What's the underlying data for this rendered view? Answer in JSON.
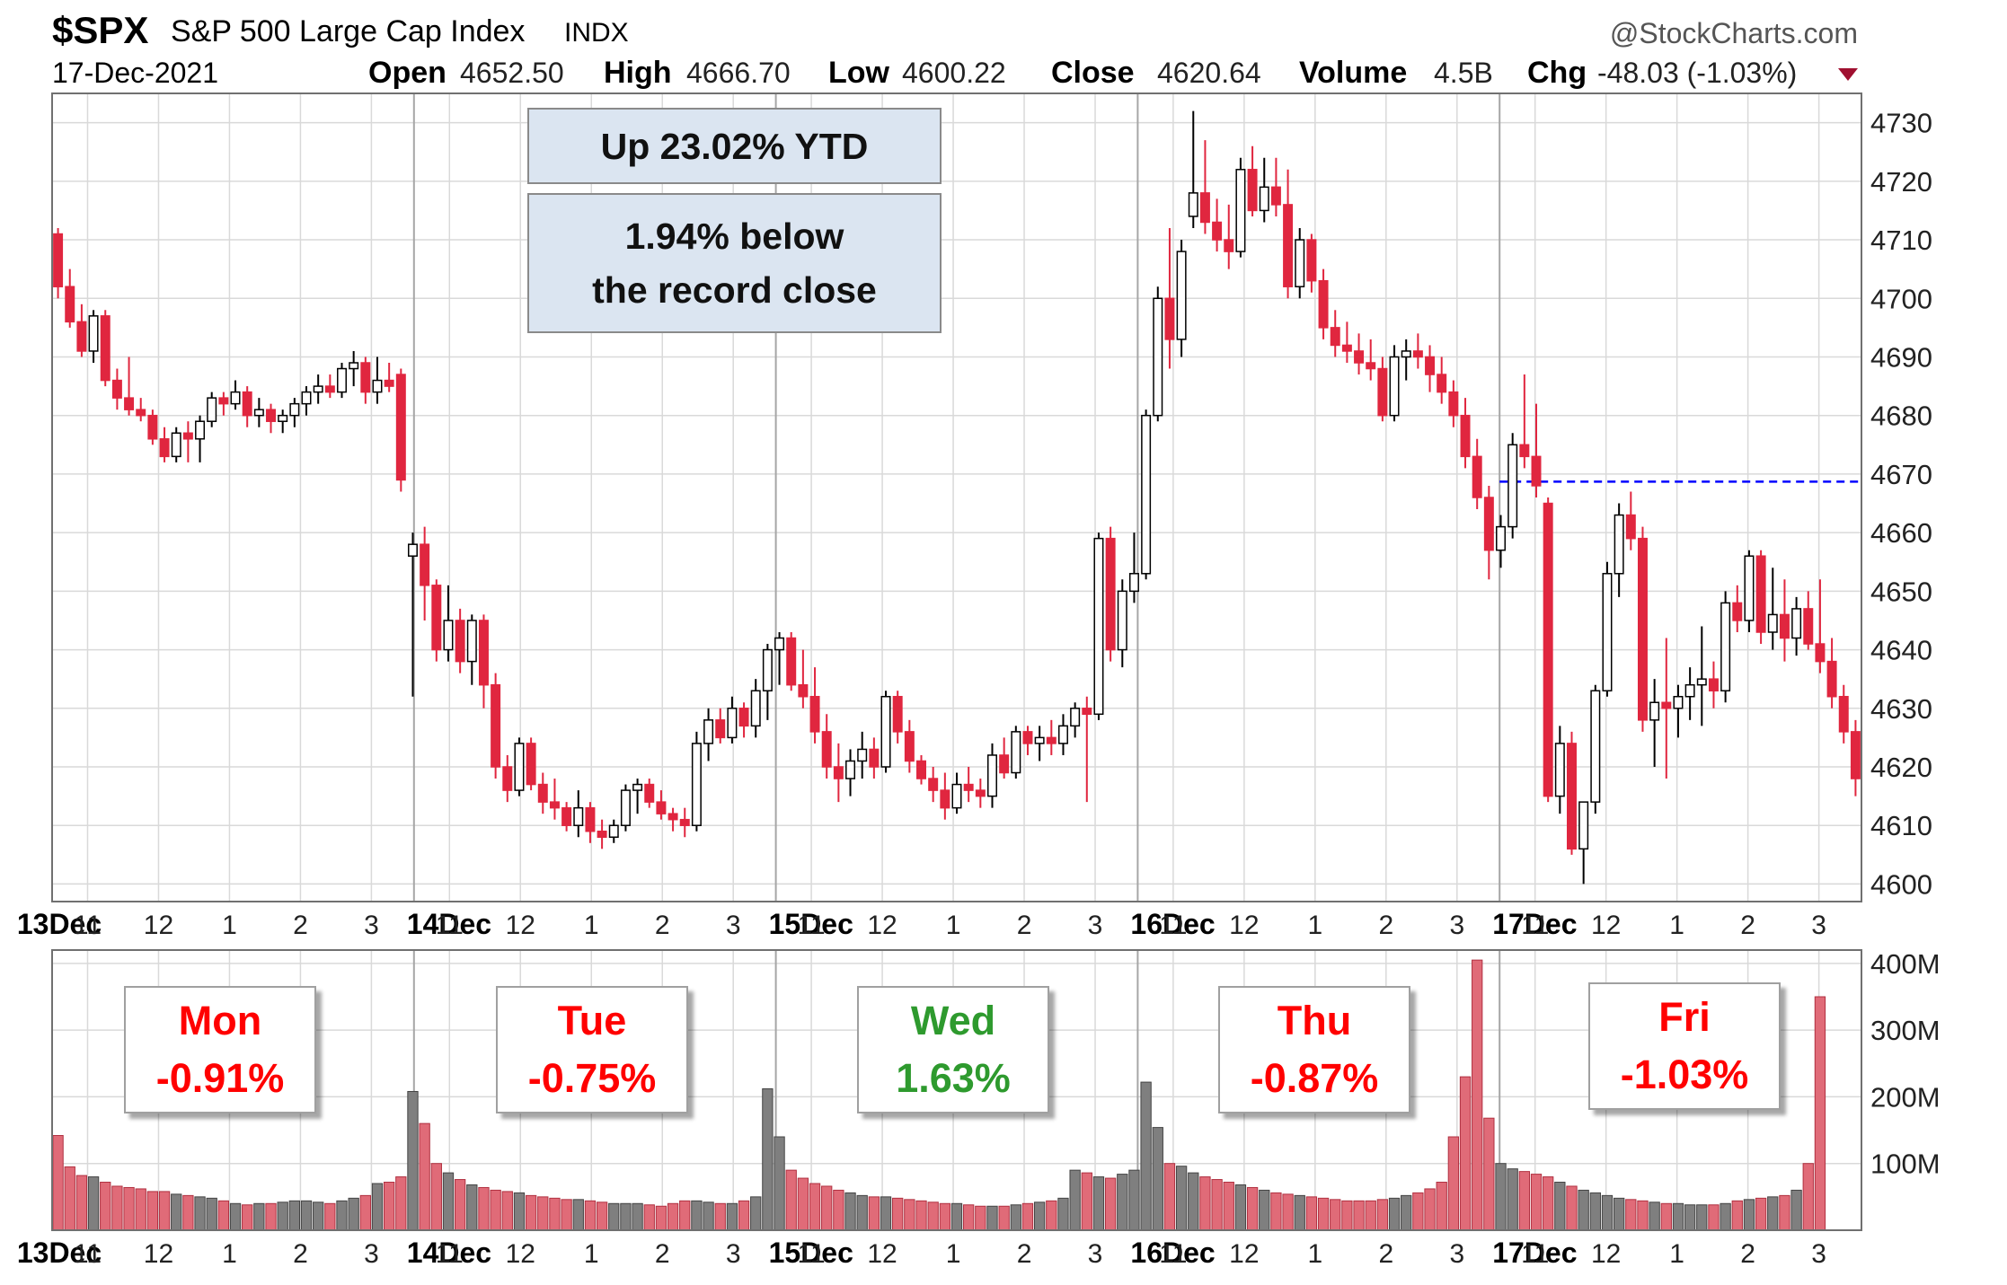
{
  "header": {
    "symbol": "$SPX",
    "name": "S&P 500 Large Cap Index",
    "exchange": "INDX",
    "date": "17-Dec-2021",
    "copyright": "@StockCharts.com",
    "stats": [
      {
        "label": "Open",
        "value": "4652.50"
      },
      {
        "label": "High",
        "value": "4666.70"
      },
      {
        "label": "Low",
        "value": "4600.22"
      },
      {
        "label": "Close",
        "value": "4620.64"
      },
      {
        "label": "Volume",
        "value": "4.5B"
      },
      {
        "label": "Chg",
        "value": "-48.03 (-1.03%)"
      }
    ],
    "change_direction": "down"
  },
  "callouts": {
    "ytd": "Up 23.02% YTD",
    "record_line1": "1.94% below",
    "record_line2": "the record close"
  },
  "day_boxes": [
    {
      "day": "Mon",
      "change": "-0.91%",
      "color": "#ff0000"
    },
    {
      "day": "Tue",
      "change": "-0.75%",
      "color": "#ff0000"
    },
    {
      "day": "Wed",
      "change": "1.63%",
      "color": "#2e9a2e"
    },
    {
      "day": "Thu",
      "change": "-0.87%",
      "color": "#ff0000"
    },
    {
      "day": "Fri",
      "change": "-1.03%",
      "color": "#ff0000"
    }
  ],
  "colors": {
    "up": "#ffffff",
    "down": "#e0263f",
    "reference_line": "#0000ff",
    "volume_up": "#7f7f7f",
    "volume_down": "#e06b78"
  },
  "chart_data": {
    "type": "candlestick",
    "interval_minutes": 10,
    "ylim": [
      4597,
      4735
    ],
    "yticks": [
      4600,
      4610,
      4620,
      4630,
      4640,
      4650,
      4660,
      4670,
      4680,
      4690,
      4700,
      4710,
      4720,
      4730
    ],
    "reference_line": {
      "value": 4668.7,
      "start_day": "17Dec"
    },
    "days": [
      "13Dec",
      "14Dec",
      "15Dec",
      "16Dec",
      "17Dec"
    ],
    "x_tick_labels": [
      "13Dec",
      "11",
      "12",
      "1",
      "2",
      "3",
      "14Dec",
      "11",
      "12",
      "1",
      "2",
      "3",
      "15Dec",
      "11",
      "12",
      "1",
      "2",
      "3",
      "16Dec",
      "11",
      "12",
      "1",
      "2",
      "3",
      "17Dec",
      "11",
      "12",
      "1",
      "2",
      "3"
    ],
    "candles": [
      [
        4711,
        4712,
        4700,
        4702
      ],
      [
        4702,
        4705,
        4695,
        4696
      ],
      [
        4696,
        4699,
        4690,
        4691
      ],
      [
        4691,
        4698,
        4689,
        4697
      ],
      [
        4697,
        4698,
        4685,
        4686
      ],
      [
        4686,
        4688,
        4681,
        4683
      ],
      [
        4683,
        4690,
        4680,
        4681
      ],
      [
        4681,
        4683,
        4679,
        4680
      ],
      [
        4680,
        4681,
        4675,
        4676
      ],
      [
        4676,
        4678,
        4672,
        4673
      ],
      [
        4673,
        4678,
        4672,
        4677
      ],
      [
        4677,
        4679,
        4672,
        4676
      ],
      [
        4676,
        4680,
        4672,
        4679
      ],
      [
        4679,
        4684,
        4678,
        4683
      ],
      [
        4683,
        4684,
        4680,
        4682
      ],
      [
        4682,
        4686,
        4681,
        4684
      ],
      [
        4684,
        4685,
        4678,
        4680
      ],
      [
        4680,
        4683,
        4678,
        4681
      ],
      [
        4681,
        4682,
        4677,
        4679
      ],
      [
        4679,
        4681,
        4677,
        4680
      ],
      [
        4680,
        4683,
        4678,
        4682
      ],
      [
        4682,
        4685,
        4680,
        4684
      ],
      [
        4684,
        4687,
        4682,
        4685
      ],
      [
        4685,
        4687,
        4683,
        4684
      ],
      [
        4684,
        4689,
        4683,
        4688
      ],
      [
        4688,
        4691,
        4685,
        4689
      ],
      [
        4689,
        4690,
        4682,
        4684
      ],
      [
        4684,
        4690,
        4682,
        4686
      ],
      [
        4686,
        4689,
        4684,
        4685
      ],
      [
        4687,
        4688,
        4667,
        4669
      ],
      [
        4656,
        4660,
        4632,
        4658
      ],
      [
        4658,
        4661,
        4645,
        4651
      ],
      [
        4651,
        4652,
        4638,
        4640
      ],
      [
        4640,
        4651,
        4638,
        4645
      ],
      [
        4645,
        4647,
        4636,
        4638
      ],
      [
        4638,
        4646,
        4634,
        4645
      ],
      [
        4645,
        4646,
        4630,
        4634
      ],
      [
        4634,
        4636,
        4618,
        4620
      ],
      [
        4620,
        4622,
        4614,
        4616
      ],
      [
        4616,
        4625,
        4615,
        4624
      ],
      [
        4624,
        4625,
        4616,
        4617
      ],
      [
        4617,
        4619,
        4612,
        4614
      ],
      [
        4614,
        4618,
        4611,
        4613
      ],
      [
        4613,
        4614,
        4609,
        4610
      ],
      [
        4610,
        4616,
        4608,
        4613
      ],
      [
        4613,
        4614,
        4607,
        4609
      ],
      [
        4609,
        4611,
        4606,
        4608
      ],
      [
        4608,
        4611,
        4607,
        4610
      ],
      [
        4610,
        4617,
        4609,
        4616
      ],
      [
        4616,
        4618,
        4612,
        4617
      ],
      [
        4617,
        4618,
        4613,
        4614
      ],
      [
        4614,
        4616,
        4611,
        4612
      ],
      [
        4612,
        4613,
        4609,
        4611
      ],
      [
        4611,
        4613,
        4608,
        4610
      ],
      [
        4610,
        4626,
        4609,
        4624
      ],
      [
        4624,
        4630,
        4621,
        4628
      ],
      [
        4628,
        4630,
        4624,
        4625
      ],
      [
        4625,
        4632,
        4624,
        4630
      ],
      [
        4630,
        4631,
        4625,
        4627
      ],
      [
        4627,
        4635,
        4625,
        4633
      ],
      [
        4633,
        4641,
        4628,
        4640
      ],
      [
        4640,
        4643,
        4634,
        4642
      ],
      [
        4642,
        4643,
        4633,
        4634
      ],
      [
        4634,
        4640,
        4630,
        4632
      ],
      [
        4632,
        4637,
        4624,
        4626
      ],
      [
        4626,
        4629,
        4618,
        4620
      ],
      [
        4620,
        4624,
        4614,
        4618
      ],
      [
        4618,
        4623,
        4615,
        4621
      ],
      [
        4621,
        4626,
        4618,
        4623
      ],
      [
        4623,
        4625,
        4618,
        4620
      ],
      [
        4620,
        4633,
        4619,
        4632
      ],
      [
        4632,
        4633,
        4624,
        4626
      ],
      [
        4626,
        4628,
        4619,
        4621
      ],
      [
        4621,
        4622,
        4617,
        4618
      ],
      [
        4618,
        4620,
        4614,
        4616
      ],
      [
        4616,
        4619,
        4611,
        4613
      ],
      [
        4613,
        4619,
        4612,
        4617
      ],
      [
        4617,
        4620,
        4614,
        4616
      ],
      [
        4616,
        4618,
        4613,
        4615
      ],
      [
        4615,
        4624,
        4613,
        4622
      ],
      [
        4622,
        4625,
        4618,
        4619
      ],
      [
        4619,
        4627,
        4618,
        4626
      ],
      [
        4626,
        4627,
        4622,
        4624
      ],
      [
        4624,
        4627,
        4621,
        4625
      ],
      [
        4625,
        4628,
        4622,
        4624
      ],
      [
        4624,
        4629,
        4622,
        4627
      ],
      [
        4627,
        4631,
        4625,
        4630
      ],
      [
        4630,
        4632,
        4614,
        4629
      ],
      [
        4629,
        4660,
        4628,
        4659
      ],
      [
        4659,
        4661,
        4638,
        4640
      ],
      [
        4640,
        4652,
        4637,
        4650
      ],
      [
        4650,
        4660,
        4648,
        4653
      ],
      [
        4653,
        4681,
        4652,
        4680
      ],
      [
        4680,
        4702,
        4679,
        4700
      ],
      [
        4700,
        4712,
        4688,
        4693
      ],
      [
        4693,
        4710,
        4690,
        4708
      ],
      [
        4714,
        4732,
        4712,
        4718
      ],
      [
        4718,
        4727,
        4711,
        4713
      ],
      [
        4713,
        4717,
        4708,
        4710
      ],
      [
        4710,
        4716,
        4705,
        4708
      ],
      [
        4708,
        4724,
        4707,
        4722
      ],
      [
        4722,
        4726,
        4714,
        4715
      ],
      [
        4715,
        4724,
        4713,
        4719
      ],
      [
        4719,
        4724,
        4714,
        4716
      ],
      [
        4716,
        4722,
        4700,
        4702
      ],
      [
        4702,
        4712,
        4700,
        4710
      ],
      [
        4710,
        4711,
        4701,
        4703
      ],
      [
        4703,
        4705,
        4693,
        4695
      ],
      [
        4695,
        4698,
        4690,
        4692
      ],
      [
        4692,
        4696,
        4689,
        4691
      ],
      [
        4691,
        4694,
        4687,
        4689
      ],
      [
        4689,
        4693,
        4686,
        4688
      ],
      [
        4688,
        4690,
        4679,
        4680
      ],
      [
        4680,
        4692,
        4679,
        4690
      ],
      [
        4690,
        4693,
        4686,
        4691
      ],
      [
        4691,
        4694,
        4688,
        4690
      ],
      [
        4690,
        4692,
        4684,
        4687
      ],
      [
        4687,
        4690,
        4682,
        4684
      ],
      [
        4684,
        4686,
        4678,
        4680
      ],
      [
        4680,
        4683,
        4671,
        4673
      ],
      [
        4673,
        4676,
        4664,
        4666
      ],
      [
        4666,
        4668,
        4652,
        4657
      ],
      [
        4657,
        4663,
        4654,
        4661
      ],
      [
        4661,
        4677,
        4659,
        4675
      ],
      [
        4675,
        4687,
        4671,
        4673
      ],
      [
        4673,
        4682,
        4666,
        4668
      ],
      [
        4665,
        4666,
        4614,
        4615
      ],
      [
        4615,
        4627,
        4612,
        4624
      ],
      [
        4624,
        4626,
        4605,
        4606
      ],
      [
        4606,
        4614,
        4600,
        4614
      ],
      [
        4614,
        4634,
        4612,
        4633
      ],
      [
        4633,
        4655,
        4632,
        4653
      ],
      [
        4653,
        4665,
        4649,
        4663
      ],
      [
        4663,
        4667,
        4657,
        4659
      ],
      [
        4659,
        4661,
        4626,
        4628
      ],
      [
        4628,
        4635,
        4620,
        4631
      ],
      [
        4631,
        4642,
        4618,
        4630
      ],
      [
        4630,
        4634,
        4625,
        4632
      ],
      [
        4632,
        4637,
        4628,
        4634
      ],
      [
        4634,
        4644,
        4627,
        4635
      ],
      [
        4635,
        4638,
        4630,
        4633
      ],
      [
        4633,
        4650,
        4631,
        4648
      ],
      [
        4648,
        4651,
        4643,
        4645
      ],
      [
        4645,
        4657,
        4643,
        4656
      ],
      [
        4656,
        4657,
        4641,
        4643
      ],
      [
        4643,
        4654,
        4640,
        4646
      ],
      [
        4646,
        4652,
        4638,
        4642
      ],
      [
        4642,
        4649,
        4639,
        4647
      ],
      [
        4647,
        4650,
        4640,
        4641
      ],
      [
        4641,
        4652,
        4636,
        4638
      ],
      [
        4638,
        4642,
        4630,
        4632
      ],
      [
        4632,
        4634,
        4624,
        4626
      ],
      [
        4626,
        4628,
        4615,
        4618
      ]
    ],
    "volume": {
      "ylim": [
        0,
        420
      ],
      "yticks": [
        100,
        200,
        300,
        400
      ],
      "tick_labels": [
        "100M",
        "200M",
        "300M",
        "400M"
      ],
      "values": [
        142,
        95,
        82,
        80,
        72,
        66,
        64,
        62,
        58,
        58,
        54,
        52,
        50,
        48,
        44,
        40,
        38,
        40,
        40,
        42,
        44,
        44,
        42,
        40,
        44,
        48,
        52,
        70,
        72,
        80,
        208,
        160,
        100,
        86,
        76,
        68,
        64,
        60,
        58,
        56,
        52,
        50,
        48,
        46,
        46,
        44,
        42,
        40,
        40,
        40,
        38,
        36,
        40,
        44,
        44,
        42,
        40,
        40,
        44,
        50,
        212,
        140,
        90,
        78,
        70,
        66,
        60,
        56,
        52,
        50,
        50,
        48,
        46,
        44,
        42,
        40,
        40,
        38,
        36,
        36,
        36,
        38,
        40,
        42,
        44,
        48,
        90,
        86,
        80,
        78,
        84,
        90,
        222,
        154,
        100,
        96,
        86,
        80,
        76,
        72,
        68,
        64,
        60,
        56,
        54,
        52,
        50,
        48,
        46,
        44,
        44,
        44,
        46,
        48,
        52,
        56,
        62,
        72,
        140,
        230,
        405,
        168,
        100,
        92,
        88,
        84,
        80,
        72,
        66,
        60,
        56,
        52,
        48,
        46,
        44,
        42,
        40,
        40,
        38,
        38,
        38,
        40,
        44,
        46,
        48,
        50,
        52,
        60,
        100,
        350
      ]
    }
  }
}
